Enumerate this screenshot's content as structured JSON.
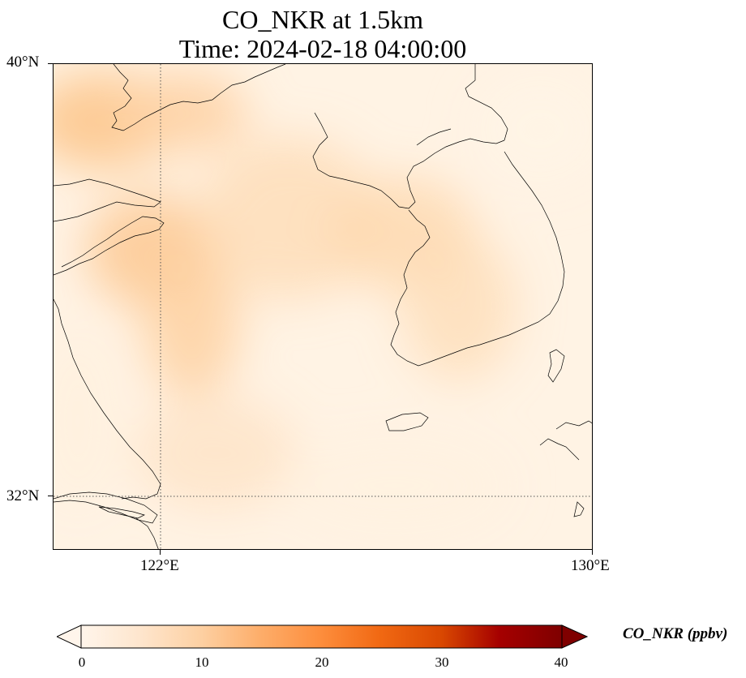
{
  "title": {
    "line1": "CO_NKR at 1.5km",
    "line2": "Time: 2024-02-18 04:00:00"
  },
  "map": {
    "variable": "CO_NKR",
    "level": "1.5km",
    "lat_range": [
      31.25,
      40.0
    ],
    "lon_range": [
      120.2,
      130.0
    ],
    "gridlines": [
      {
        "type": "meridian",
        "label": "122°E",
        "value": 122
      },
      {
        "type": "parallel",
        "label": "32°N",
        "value": 32
      }
    ],
    "y_ticks": [
      "40°N",
      "32°N"
    ],
    "x_ticks": [
      "122°E",
      "130°E"
    ]
  },
  "colorbar": {
    "title": "CO_NKR (ppbv)",
    "ticks": [
      "0",
      "10",
      "20",
      "30",
      "40"
    ],
    "range": [
      0,
      40
    ],
    "extend": "both",
    "colors": [
      "#fff5eb",
      "#fee6ce",
      "#fdd0a2",
      "#fdae6b",
      "#fd8d3c",
      "#f16913",
      "#d94801",
      "#a50000",
      "#7f0000"
    ]
  }
}
